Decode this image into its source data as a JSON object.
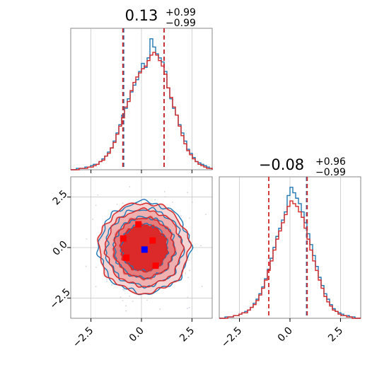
{
  "chart_data": {
    "type": "corner",
    "colors": {
      "series_a": "#1f77b4",
      "series_b": "#d62728",
      "truth": "#0000ff",
      "samples": "#ff0000",
      "grid": "#b0b0b0"
    },
    "panels": [
      {
        "id": "marginal-x",
        "type": "histogram",
        "title": {
          "median": "0.13",
          "plus": "+0.99",
          "minus": "−0.99"
        },
        "xlim": [
          -3.5,
          3.5
        ],
        "grid_x": [
          -2.5,
          0.0,
          2.5
        ],
        "quantile_lines": {
          "series_a": [
            -0.88,
            1.12
          ],
          "series_b": [
            -0.92,
            1.12
          ]
        },
        "series": [
          {
            "color": "series_a",
            "x_start": -3.5,
            "bin_width": 0.14,
            "values": [
              0,
              0,
              1,
              1,
              1,
              2,
              2,
              3,
              4,
              4,
              6,
              8,
              10,
              13,
              16,
              21,
              27,
              33,
              40,
              45,
              52,
              57,
              62,
              66,
              72,
              78,
              75,
              82,
              96,
              90,
              85,
              82,
              79,
              72,
              60,
              52,
              45,
              40,
              33,
              27,
              21,
              15,
              12,
              9,
              6,
              5,
              4,
              3,
              2,
              1
            ]
          },
          {
            "color": "series_b",
            "x_start": -3.5,
            "bin_width": 0.14,
            "values": [
              0,
              0,
              0,
              1,
              1,
              1,
              2,
              2,
              3,
              4,
              6,
              7,
              10,
              12,
              16,
              20,
              26,
              32,
              38,
              46,
              50,
              58,
              64,
              68,
              71,
              74,
              76,
              80,
              84,
              86,
              84,
              80,
              76,
              70,
              60,
              53,
              46,
              40,
              32,
              25,
              19,
              14,
              11,
              8,
              6,
              4,
              3,
              2,
              1,
              1
            ]
          }
        ]
      },
      {
        "id": "joint",
        "type": "contour",
        "xlim": [
          -3.5,
          3.5
        ],
        "ylim": [
          -3.5,
          3.5
        ],
        "xticks": [
          -2.5,
          0.0,
          2.5
        ],
        "yticks": [
          -2.5,
          0.0,
          2.5
        ],
        "tick_labels": [
          "−2.5",
          "0.0",
          "2.5"
        ],
        "sample_points": [
          {
            "x": -0.15,
            "y": 1.15
          },
          {
            "x": -0.9,
            "y": 0.45
          },
          {
            "x": 0.55,
            "y": 0.35
          },
          {
            "x": -0.75,
            "y": -0.5
          },
          {
            "x": 0.7,
            "y": -0.9
          }
        ],
        "truth_point": {
          "x": 0.15,
          "y": -0.1
        }
      },
      {
        "id": "marginal-y",
        "type": "histogram",
        "title": {
          "median": "−0.08",
          "plus": "+0.96",
          "minus": "−0.99"
        },
        "xlim": [
          -3.5,
          3.5
        ],
        "grid_x": [
          -2.5,
          0.0,
          2.5
        ],
        "tick_labels": [
          "−2.5",
          "0.0",
          "2.5"
        ],
        "quantile_lines": {
          "series_a": [
            0.82
          ],
          "series_b": [
            -1.05,
            0.85
          ]
        },
        "series": [
          {
            "color": "series_a",
            "x_start": -3.5,
            "bin_width": 0.14,
            "values": [
              0,
              0,
              1,
              1,
              1,
              2,
              2,
              3,
              4,
              5,
              6,
              8,
              11,
              14,
              18,
              23,
              29,
              36,
              44,
              52,
              60,
              66,
              72,
              78,
              90,
              96,
              92,
              88,
              84,
              78,
              70,
              62,
              54,
              46,
              38,
              30,
              24,
              18,
              14,
              10,
              7,
              5,
              4,
              3,
              2,
              2,
              1,
              1,
              0,
              0
            ]
          },
          {
            "color": "series_b",
            "x_start": -3.5,
            "bin_width": 0.14,
            "values": [
              0,
              0,
              0,
              1,
              1,
              2,
              2,
              3,
              4,
              4,
              6,
              8,
              10,
              13,
              17,
              22,
              28,
              35,
              42,
              50,
              58,
              64,
              70,
              76,
              82,
              86,
              84,
              82,
              78,
              74,
              66,
              58,
              50,
              42,
              35,
              28,
              22,
              16,
              12,
              9,
              6,
              5,
              3,
              2,
              2,
              1,
              1,
              0,
              0,
              0
            ]
          }
        ]
      }
    ]
  }
}
